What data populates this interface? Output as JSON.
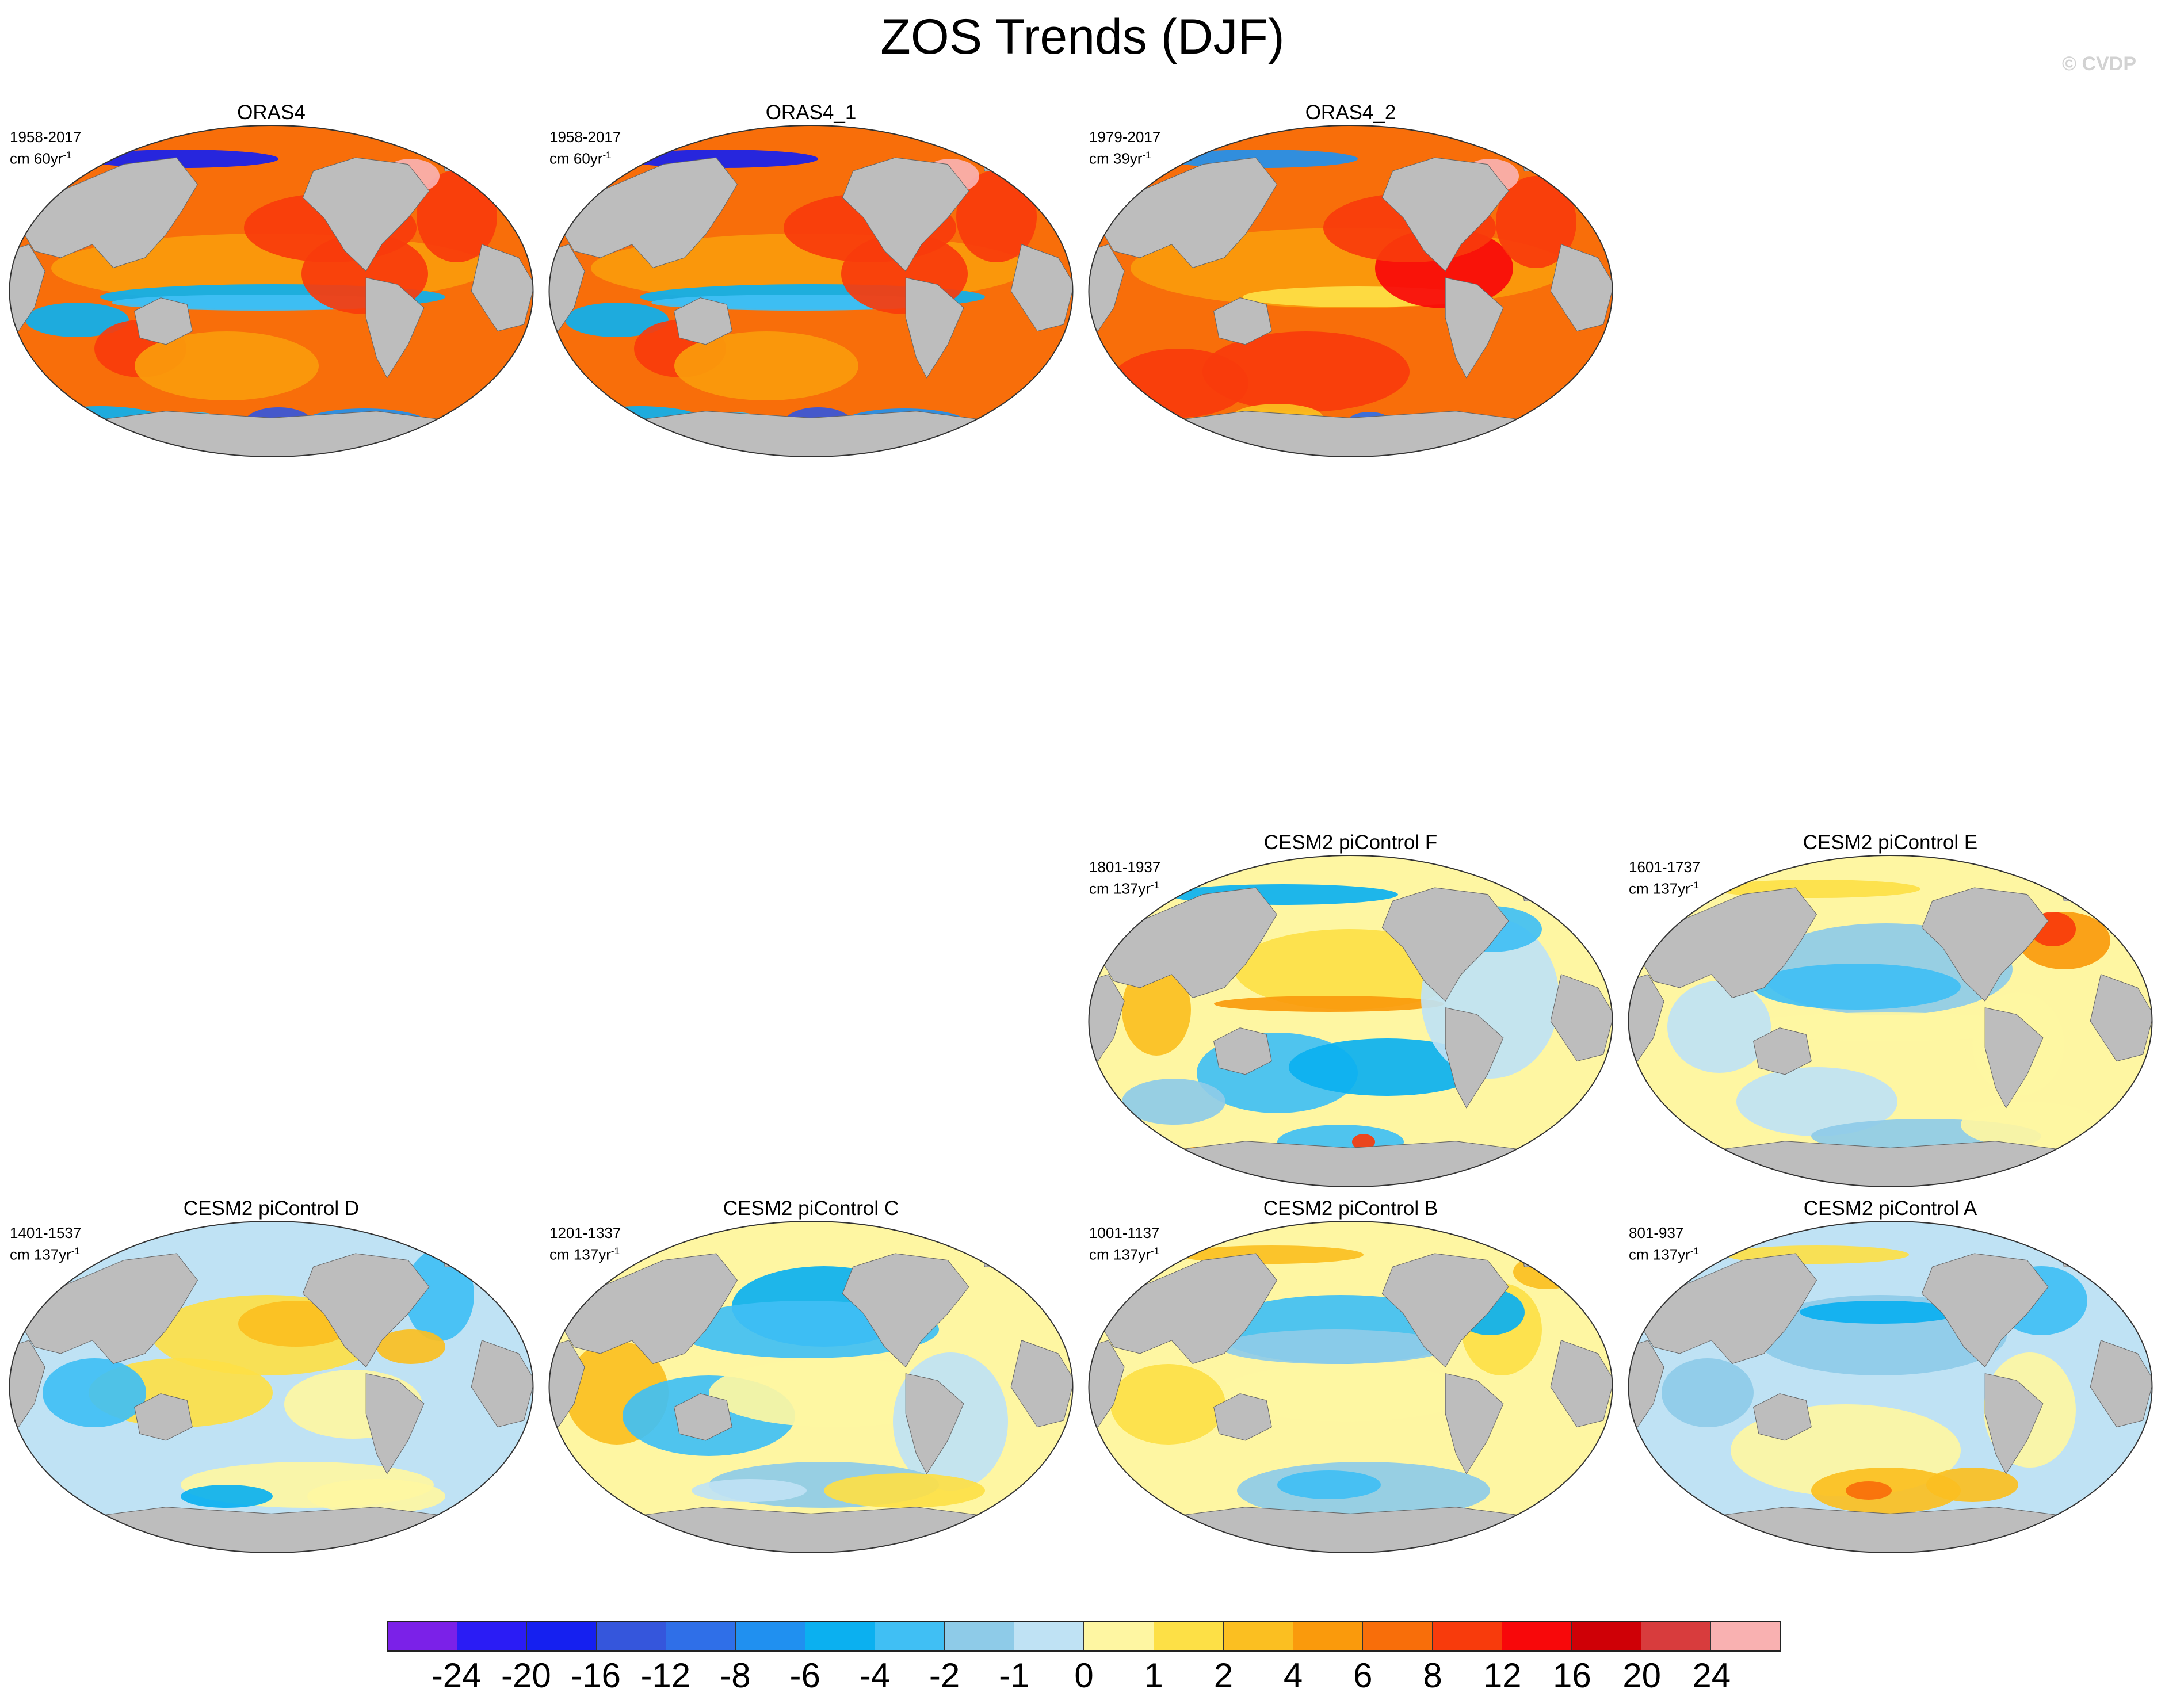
{
  "figure": {
    "title": "ZOS Trends (DJF)",
    "copyright": "© CVDP"
  },
  "panels": [
    {
      "title": "ORAS4",
      "period": "1958-2017",
      "units": "cm 60yr",
      "unit_exp": "-1",
      "pattern": "observed-warm",
      "land_color": "#bdbdbd"
    },
    {
      "title": "ORAS4_1",
      "period": "1958-2017",
      "units": "cm 60yr",
      "unit_exp": "-1",
      "pattern": "observed-warm",
      "land_color": "#bdbdbd"
    },
    {
      "title": "ORAS4_2",
      "period": "1979-2017",
      "units": "cm 39yr",
      "unit_exp": "-1",
      "pattern": "observed-warm-2",
      "land_color": "#bdbdbd"
    },
    {
      "title": "CESM2 piControl F",
      "period": "1801-1937",
      "units": "cm 137yr",
      "unit_exp": "-1",
      "pattern": "control-f",
      "land_color": "#bdbdbd"
    },
    {
      "title": "CESM2 piControl E",
      "period": "1601-1737",
      "units": "cm 137yr",
      "unit_exp": "-1",
      "pattern": "control-e",
      "land_color": "#bdbdbd"
    },
    {
      "title": "CESM2 piControl D",
      "period": "1401-1537",
      "units": "cm 137yr",
      "unit_exp": "-1",
      "pattern": "control-d",
      "land_color": "#bdbdbd"
    },
    {
      "title": "CESM2 piControl C",
      "period": "1201-1337",
      "units": "cm 137yr",
      "unit_exp": "-1",
      "pattern": "control-c",
      "land_color": "#bdbdbd"
    },
    {
      "title": "CESM2 piControl B",
      "period": "1001-1137",
      "units": "cm 137yr",
      "unit_exp": "-1",
      "pattern": "control-b",
      "land_color": "#bdbdbd"
    },
    {
      "title": "CESM2 piControl A",
      "period": "801-937",
      "units": "cm 137yr",
      "unit_exp": "-1",
      "pattern": "control-a",
      "land_color": "#bdbdbd"
    }
  ],
  "colorbar": {
    "colors": [
      "#7b21e8",
      "#2a1cf5",
      "#1520f0",
      "#3556dc",
      "#2f6fe8",
      "#2090f0",
      "#0bb0f0",
      "#40bff4",
      "#8ecbe8",
      "#bfe2f4",
      "#fef6a2",
      "#fde046",
      "#fbbf21",
      "#fa9a0c",
      "#f86e0a",
      "#f83b0c",
      "#f8080a",
      "#cf0006",
      "#d83c3d",
      "#f9b1b1"
    ],
    "labels": [
      "-24",
      "-20",
      "-16",
      "-12",
      "-8",
      "-6",
      "-4",
      "-2",
      "-1",
      "0",
      "1",
      "2",
      "4",
      "6",
      "8",
      "12",
      "16",
      "20",
      "24"
    ]
  }
}
